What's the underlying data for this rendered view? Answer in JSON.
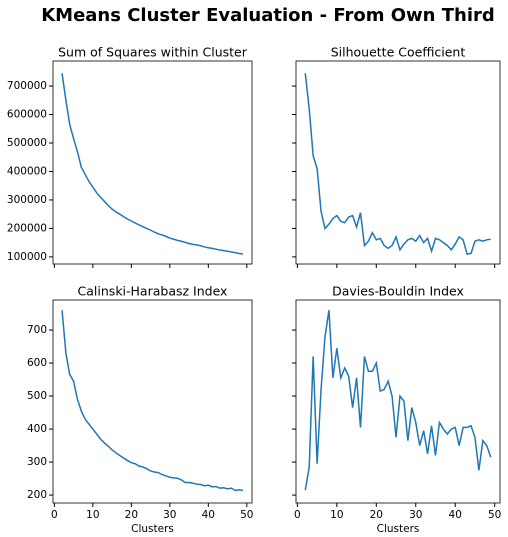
{
  "title": "KMeans Cluster Evaluation - From Own Third",
  "chart_data": [
    {
      "type": "line",
      "title": "Sum of Squares within Cluster",
      "x": [
        2,
        3,
        4,
        5,
        6,
        7,
        8,
        9,
        10,
        11,
        12,
        13,
        14,
        15,
        16,
        17,
        18,
        19,
        20,
        21,
        22,
        23,
        24,
        25,
        26,
        27,
        28,
        29,
        30,
        31,
        32,
        33,
        34,
        35,
        36,
        37,
        38,
        39,
        40,
        41,
        42,
        43,
        44,
        45,
        46,
        47,
        48,
        49
      ],
      "values": [
        745000,
        650000,
        565000,
        515000,
        470000,
        415000,
        390000,
        365000,
        345000,
        325000,
        310000,
        295000,
        280000,
        268000,
        258000,
        250000,
        241000,
        233000,
        226000,
        219000,
        212000,
        206000,
        200000,
        194000,
        187000,
        181000,
        177000,
        172000,
        166000,
        162000,
        158000,
        155000,
        151000,
        147000,
        144000,
        142000,
        139000,
        135000,
        132000,
        130000,
        127000,
        124000,
        122000,
        120000,
        117000,
        115000,
        112000,
        110000
      ],
      "color": "#1f77b4",
      "xlim": [
        -0.35,
        51.35
      ],
      "xticks": [
        0,
        10,
        20,
        30,
        40,
        50
      ],
      "ylim": [
        75000,
        788000
      ],
      "yticks": [
        100000,
        200000,
        300000,
        400000,
        500000,
        600000,
        700000
      ]
    },
    {
      "type": "line",
      "title": "Silhouette Coefficient",
      "x": [
        2,
        3,
        4,
        5,
        6,
        7,
        8,
        9,
        10,
        11,
        12,
        13,
        14,
        15,
        16,
        17,
        18,
        19,
        20,
        21,
        22,
        23,
        24,
        25,
        26,
        27,
        28,
        29,
        30,
        31,
        32,
        33,
        34,
        35,
        36,
        37,
        38,
        39,
        40,
        41,
        42,
        43,
        44,
        45,
        46,
        47,
        48,
        49
      ],
      "values": [
        745000,
        620000,
        455000,
        410000,
        260000,
        200000,
        215000,
        235000,
        245000,
        225000,
        220000,
        240000,
        245000,
        205000,
        255000,
        140000,
        155000,
        185000,
        160000,
        165000,
        140000,
        130000,
        140000,
        170000,
        125000,
        145000,
        160000,
        165000,
        155000,
        175000,
        150000,
        165000,
        120000,
        165000,
        160000,
        150000,
        140000,
        125000,
        145000,
        170000,
        160000,
        110000,
        112000,
        155000,
        160000,
        155000,
        160000,
        162000
      ],
      "color": "#1f77b4",
      "xlim": [
        -0.35,
        51.35
      ],
      "xticks": [
        0,
        10,
        20,
        30,
        40,
        50
      ],
      "ylim": [
        75000,
        788000
      ],
      "yticks": [
        100000,
        200000,
        300000,
        400000,
        500000,
        600000,
        700000
      ]
    },
    {
      "type": "line",
      "title": "Calinski-Harabasz Index",
      "xlabel": "Clusters",
      "x": [
        2,
        3,
        4,
        5,
        6,
        7,
        8,
        9,
        10,
        11,
        12,
        13,
        14,
        15,
        16,
        17,
        18,
        19,
        20,
        21,
        22,
        23,
        24,
        25,
        26,
        27,
        28,
        29,
        30,
        31,
        32,
        33,
        34,
        35,
        36,
        37,
        38,
        39,
        40,
        41,
        42,
        43,
        44,
        45,
        46,
        47,
        48,
        49
      ],
      "values": [
        760,
        630,
        565,
        545,
        490,
        455,
        430,
        415,
        400,
        385,
        370,
        358,
        348,
        337,
        328,
        320,
        312,
        305,
        298,
        295,
        288,
        285,
        280,
        273,
        270,
        268,
        262,
        258,
        254,
        252,
        251,
        246,
        238,
        238,
        236,
        233,
        232,
        228,
        230,
        225,
        226,
        221,
        222,
        219,
        221,
        214,
        216,
        214
      ],
      "color": "#1f77b4",
      "xlim": [
        -0.35,
        51.35
      ],
      "xticks": [
        0,
        10,
        20,
        30,
        40,
        50
      ],
      "ylim": [
        176,
        791
      ],
      "yticks": [
        200,
        300,
        400,
        500,
        600,
        700
      ]
    },
    {
      "type": "line",
      "title": "Davies-Bouldin Index",
      "xlabel": "Clusters",
      "x": [
        2,
        3,
        4,
        5,
        6,
        7,
        8,
        9,
        10,
        11,
        12,
        13,
        14,
        15,
        16,
        17,
        18,
        19,
        20,
        21,
        22,
        23,
        24,
        25,
        26,
        27,
        28,
        29,
        30,
        31,
        32,
        33,
        34,
        35,
        36,
        37,
        38,
        39,
        40,
        41,
        42,
        43,
        44,
        45,
        46,
        47,
        48,
        49
      ],
      "values": [
        215,
        285,
        620,
        295,
        520,
        680,
        760,
        555,
        645,
        555,
        585,
        560,
        465,
        555,
        405,
        620,
        575,
        575,
        600,
        515,
        520,
        545,
        500,
        375,
        500,
        485,
        365,
        465,
        420,
        350,
        395,
        325,
        410,
        320,
        420,
        400,
        385,
        400,
        405,
        350,
        405,
        405,
        410,
        375,
        275,
        365,
        350,
        315
      ],
      "color": "#1f77b4",
      "xlim": [
        -0.35,
        51.35
      ],
      "xticks": [
        0,
        10,
        20,
        30,
        40,
        50
      ],
      "ylim": [
        176,
        791
      ],
      "yticks": [
        200,
        300,
        400,
        500,
        600,
        700
      ]
    }
  ]
}
